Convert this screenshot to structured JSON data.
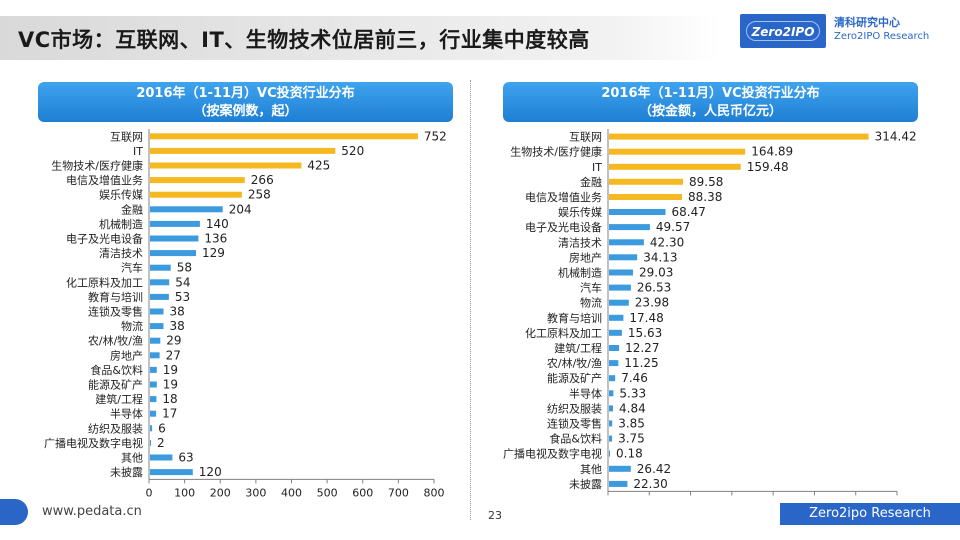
{
  "header": {
    "title": "VC市场：互联网、IT、生物技术位居前三，行业集中度较高",
    "logo_mark": "Zero2IPO",
    "logo_cn": "清科研究中心",
    "logo_en": "Zero2IPO Research"
  },
  "footer": {
    "url": "www.pedata.cn",
    "page": "23",
    "brand": "Zero2ipo Research"
  },
  "colors": {
    "highlight": "#F5B820",
    "normal": "#3B9BDE",
    "header": "#2A8FE0"
  },
  "chart_data": [
    {
      "type": "bar",
      "orientation": "horizontal",
      "title_line1": "2016年（1-11月）VC投资行业分布",
      "title_line2": "（按案例数，起）",
      "xlim": [
        0,
        800
      ],
      "xticks": [
        "0",
        "100",
        "200",
        "300",
        "400",
        "500",
        "600",
        "700",
        "800"
      ],
      "highlight_count": 5,
      "categories": [
        "互联网",
        "IT",
        "生物技术/医疗健康",
        "电信及增值业务",
        "娱乐传媒",
        "金融",
        "机械制造",
        "电子及光电设备",
        "清洁技术",
        "汽车",
        "化工原料及加工",
        "教育与培训",
        "连锁及零售",
        "物流",
        "农/林/牧/渔",
        "房地产",
        "食品&饮料",
        "能源及矿产",
        "建筑/工程",
        "半导体",
        "纺织及服装",
        "广播电视及数字电视",
        "其他",
        "未披露"
      ],
      "values": [
        752,
        520,
        425,
        266,
        258,
        204,
        140,
        136,
        129,
        58,
        54,
        53,
        38,
        38,
        29,
        27,
        19,
        19,
        18,
        17,
        6,
        2,
        63,
        120
      ],
      "labels": [
        "752",
        "520",
        "425",
        "266",
        "258",
        "204",
        "140",
        "136",
        "129",
        "58",
        "54",
        "53",
        "38",
        "38",
        "29",
        "27",
        "19",
        "19",
        "18",
        "17",
        "6",
        "2",
        "63",
        "120"
      ]
    },
    {
      "type": "bar",
      "orientation": "horizontal",
      "title_line1": "2016年（1-11月）VC投资行业分布",
      "title_line2": "（按金额，人民币亿元）",
      "xlim": [
        0,
        350
      ],
      "xticks": [
        "0",
        "50",
        "100",
        "150",
        "200",
        "250",
        "300",
        "350"
      ],
      "highlight_count": 5,
      "categories": [
        "互联网",
        "生物技术/医疗健康",
        "IT",
        "金融",
        "电信及增值业务",
        "娱乐传媒",
        "电子及光电设备",
        "清洁技术",
        "房地产",
        "机械制造",
        "汽车",
        "物流",
        "教育与培训",
        "化工原料及加工",
        "建筑/工程",
        "农/林/牧/渔",
        "能源及矿产",
        "半导体",
        "纺织及服装",
        "连锁及零售",
        "食品&饮料",
        "广播电视及数字电视",
        "其他",
        "未披露"
      ],
      "values": [
        314.42,
        164.89,
        159.48,
        89.58,
        88.38,
        68.47,
        49.57,
        42.3,
        34.13,
        29.03,
        26.53,
        23.98,
        17.48,
        15.63,
        12.27,
        11.25,
        7.46,
        5.33,
        4.84,
        3.85,
        3.75,
        0.18,
        26.42,
        22.3
      ],
      "labels": [
        "314.42",
        "164.89",
        "159.48",
        "89.58",
        "88.38",
        "68.47",
        "49.57",
        "42.30",
        "34.13",
        "29.03",
        "26.53",
        "23.98",
        "17.48",
        "15.63",
        "12.27",
        "11.25",
        "7.46",
        "5.33",
        "4.84",
        "3.85",
        "3.75",
        "0.18",
        "26.42",
        "22.30"
      ]
    }
  ]
}
